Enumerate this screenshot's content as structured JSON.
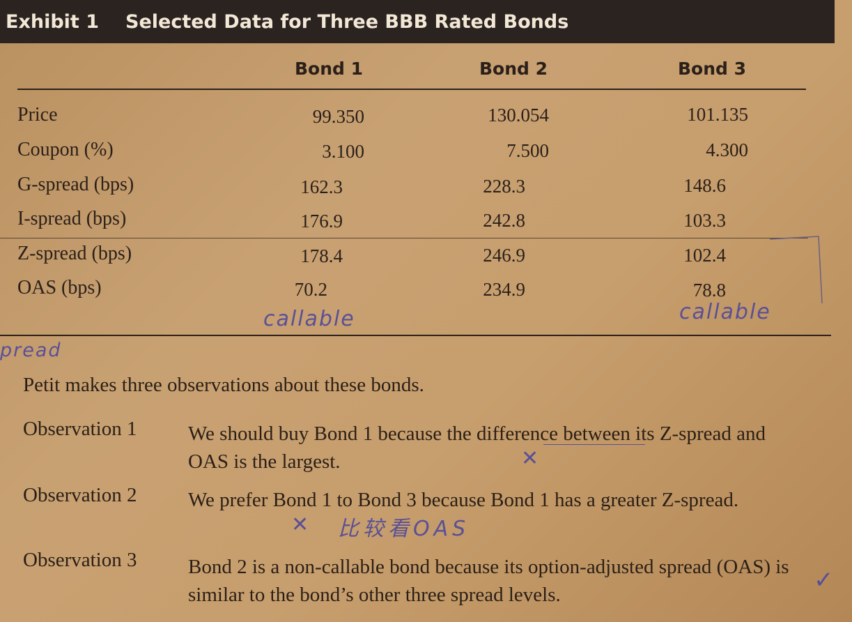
{
  "exhibit": {
    "label": "Exhibit 1",
    "title": "Selected Data for Three BBB Rated Bonds"
  },
  "table": {
    "columns": [
      "Bond 1",
      "Bond 2",
      "Bond 3"
    ],
    "rows": [
      {
        "label": "Price",
        "values": [
          "99.350",
          "130.054",
          "101.135"
        ]
      },
      {
        "label": "Coupon (%)",
        "values": [
          "3.100",
          "7.500",
          "4.300"
        ]
      },
      {
        "label": "G-spread (bps)",
        "values": [
          "162.3",
          "228.3",
          "148.6"
        ]
      },
      {
        "label": "I-spread (bps)",
        "values": [
          "176.9",
          "242.8",
          "103.3"
        ]
      },
      {
        "label": "Z-spread (bps)",
        "values": [
          "178.4",
          "246.9",
          "102.4"
        ]
      },
      {
        "label": "OAS (bps)",
        "values": [
          "70.2",
          "234.9",
          "78.8"
        ]
      }
    ]
  },
  "handwriting": {
    "bond1_note": "callable",
    "bond3_note": "callable",
    "margin_note": "pread",
    "obs2_note": "比较看OAS",
    "mark_x": "✕",
    "mark_check": "✓"
  },
  "text": {
    "intro": "Petit makes three observations about these bonds.",
    "observations": [
      {
        "label": "Observation 1",
        "text": "We should buy Bond 1 because the difference between its Z-spread and OAS is the largest."
      },
      {
        "label": "Observation 2",
        "text": "We prefer Bond 1 to Bond 3 because Bond 1 has a greater Z-spread."
      },
      {
        "label": "Observation 3",
        "text": "Bond 2 is a non-callable bond because its option-adjusted spread (OAS) is similar to the bond’s other three spread levels."
      }
    ]
  }
}
